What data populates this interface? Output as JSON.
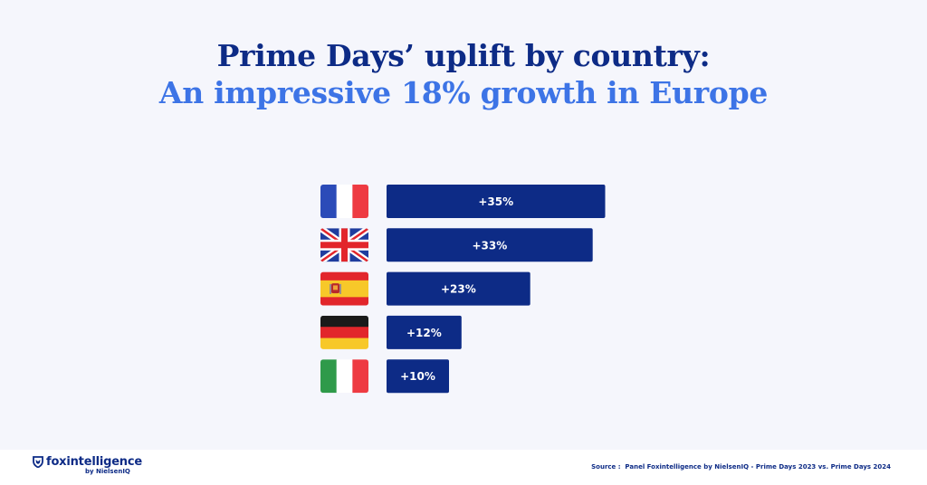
{
  "title": {
    "line1": "Prime Days’ uplift by country:",
    "line2": "An impressive 18% growth in Europe"
  },
  "chart_data": {
    "type": "bar",
    "orientation": "horizontal",
    "categories": [
      "France",
      "United Kingdom",
      "Spain",
      "Germany",
      "Italy"
    ],
    "values": [
      35,
      33,
      23,
      12,
      10
    ],
    "labels": [
      "+35%",
      "+33%",
      "+23%",
      "+12%",
      "+10%"
    ],
    "unit": "%",
    "flag_icons": [
      "flag-france-icon",
      "flag-uk-icon",
      "flag-spain-icon",
      "flag-germany-icon",
      "flag-italy-icon"
    ]
  },
  "colors": {
    "bar": "#0d2b86",
    "title_dark": "#0d2b86",
    "title_accent": "#3d74e6",
    "background": "#f5f6fc"
  },
  "footer": {
    "brand": "foxintelligence",
    "brand_sub": "by NielsenIQ",
    "source_label": "Source :",
    "source_text": "Panel Foxintelligence by NielsenIQ - Prime Days 2023 vs. Prime Days 2024"
  }
}
